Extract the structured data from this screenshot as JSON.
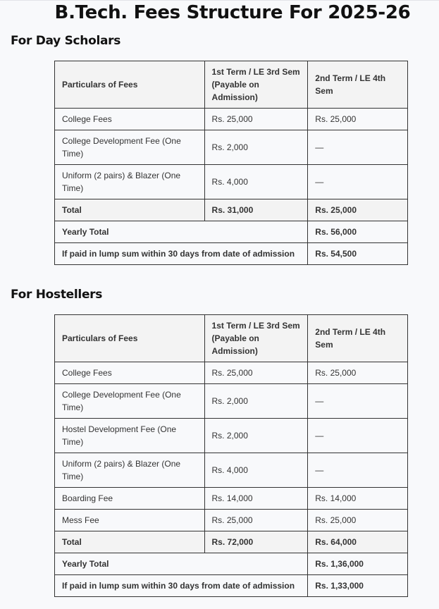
{
  "title": "B.Tech. Fees Structure For 2025-26",
  "headers": [
    "Particulars of Fees",
    "1st Term / LE 3rd Sem (Payable on Admission)",
    "2nd Term / LE 4th Sem"
  ],
  "day_scholars": {
    "heading": "For Day Scholars",
    "rows": [
      {
        "label": "College Fees",
        "term1": "Rs. 25,000",
        "term2": "Rs. 25,000"
      },
      {
        "label": "College Development Fee (One Time)",
        "term1": "Rs. 2,000",
        "term2": "—"
      },
      {
        "label": "Uniform (2 pairs) & Blazer (One Time)",
        "term1": "Rs. 4,000",
        "term2": "—"
      }
    ],
    "total": {
      "label": "Total",
      "term1": "Rs. 31,000",
      "term2": "Rs. 25,000"
    },
    "yearly": {
      "label": "Yearly Total",
      "value": "Rs. 56,000"
    },
    "lump": {
      "label": "If paid in lump sum within 30 days from date of admission",
      "value": "Rs. 54,500"
    }
  },
  "hostellers": {
    "heading": "For Hostellers",
    "rows": [
      {
        "label": "College Fees",
        "term1": "Rs. 25,000",
        "term2": "Rs. 25,000"
      },
      {
        "label": "College Development Fee (One Time)",
        "term1": "Rs. 2,000",
        "term2": "—"
      },
      {
        "label": "Hostel Development Fee (One Time)",
        "term1": "Rs. 2,000",
        "term2": "—"
      },
      {
        "label": "Uniform (2 pairs) & Blazer (One Time)",
        "term1": "Rs. 4,000",
        "term2": "—"
      },
      {
        "label": "Boarding Fee",
        "term1": "Rs. 14,000",
        "term2": "Rs. 14,000"
      },
      {
        "label": "Mess Fee",
        "term1": "Rs. 25,000",
        "term2": "Rs. 25,000"
      }
    ],
    "total": {
      "label": "Total",
      "term1": "Rs. 72,000",
      "term2": "Rs. 64,000"
    },
    "yearly": {
      "label": "Yearly Total",
      "value": "Rs. 1,36,000"
    },
    "lump": {
      "label": "If paid in lump sum within 30 days from date of admission",
      "value": "Rs. 1,33,000"
    }
  }
}
